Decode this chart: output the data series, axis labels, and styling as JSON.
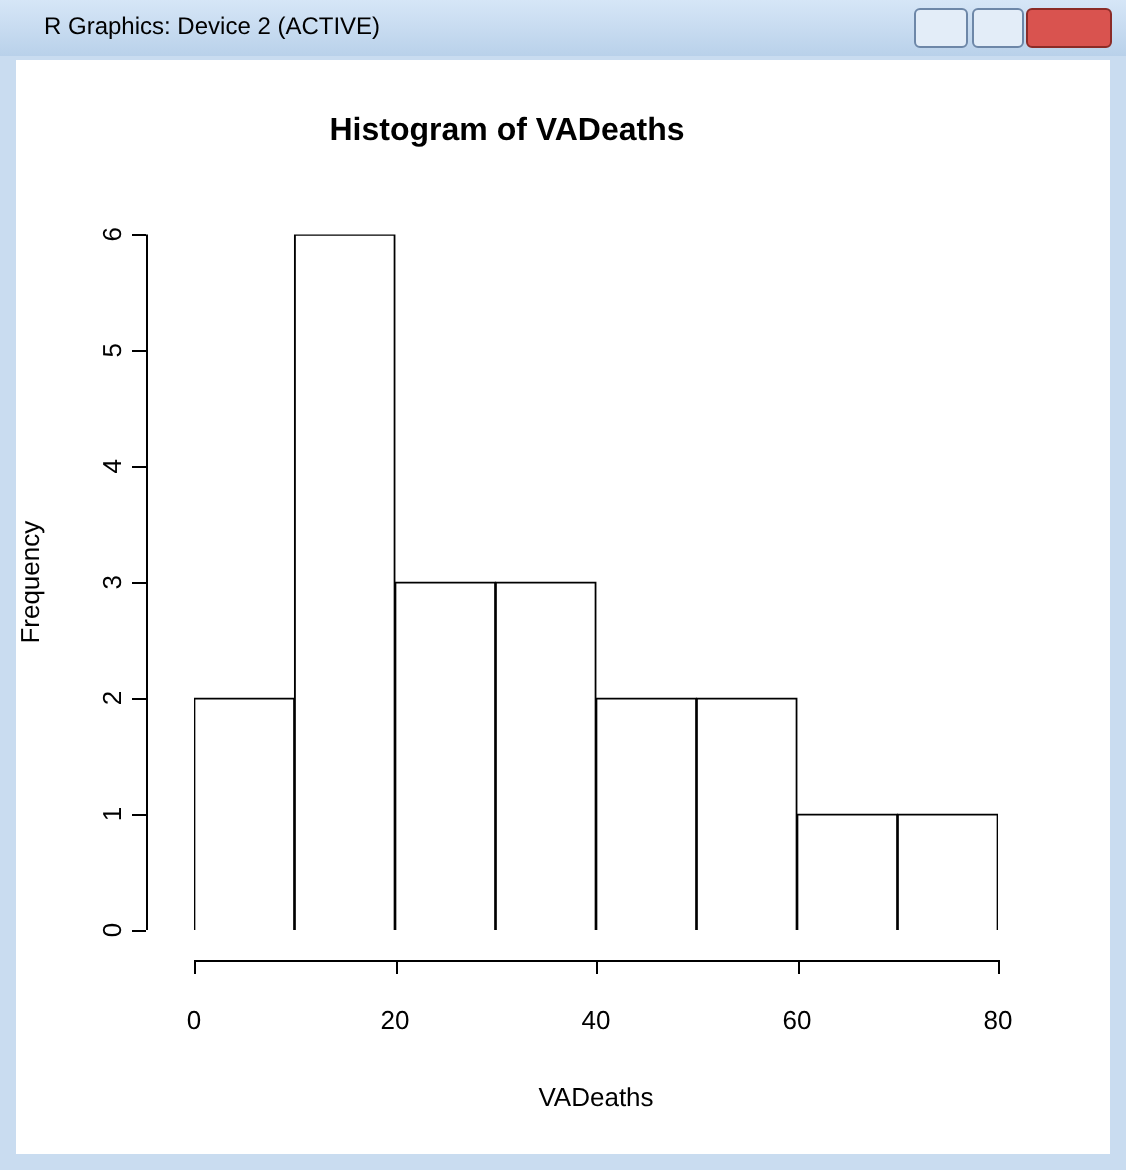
{
  "chart_data": {
    "type": "histogram",
    "title": "Histogram of VADeaths",
    "xlabel": "VADeaths",
    "ylabel": "Frequency",
    "annotations": [
      "R Graphics: Device 2 (ACTIVE)"
    ],
    "bins": [
      0,
      10,
      20,
      30,
      40,
      50,
      60,
      70,
      80
    ],
    "values": [
      2,
      6,
      3,
      3,
      2,
      2,
      1,
      1
    ],
    "color": "#ffffff",
    "xlim": [
      0,
      80
    ],
    "xticks": [
      0,
      20,
      40,
      60,
      80
    ],
    "ylim": [
      0,
      6
    ],
    "yticks": [
      0,
      1,
      2,
      3,
      4,
      5,
      6
    ],
    "grid": false,
    "legend": false
  }
}
